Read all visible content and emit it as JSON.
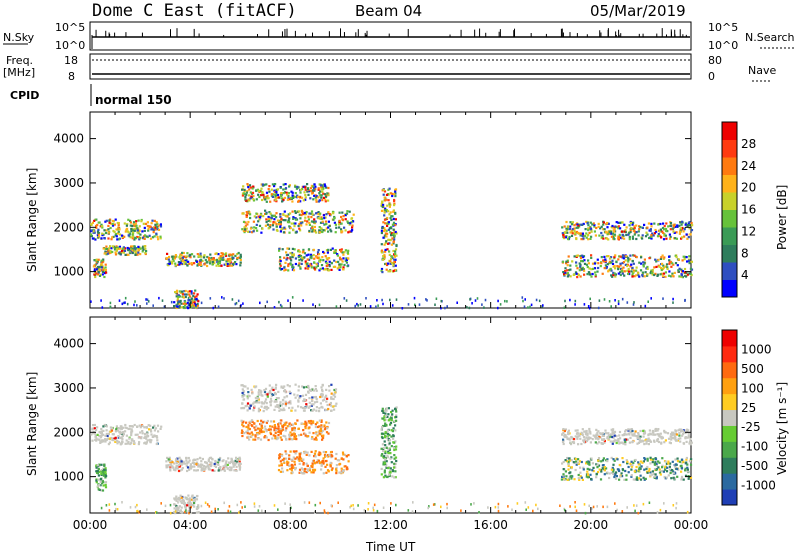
{
  "header": {
    "station": "Dome C East (fitACF)",
    "beam": "Beam 04",
    "date": "05/Mar/2019"
  },
  "top_panels": {
    "nsky_label": "N.Sky",
    "nsky_ticks": [
      "10^5",
      "10^0"
    ],
    "nsearch_label": "N.Search",
    "nsearch_ticks": [
      "10^5",
      "10^0"
    ],
    "freq_label": "Freq.",
    "freq_unit": "[MHz]",
    "freq_ticks": [
      "18",
      "8"
    ],
    "nave_label": "Nave",
    "nave_ticks": [
      "80",
      "0"
    ],
    "cpid_label": "CPID",
    "cpid_value": "normal 150"
  },
  "chart_data": [
    {
      "type": "heatmap",
      "name": "power",
      "ylabel": "Slant Range [km]",
      "y_ticks": [
        "4000",
        "3000",
        "2000",
        "1000"
      ],
      "x_ticks": [
        "00:00",
        "04:00",
        "08:00",
        "12:00",
        "16:00",
        "20:00",
        "00:00"
      ],
      "xlabel": "Time UT",
      "x_range_hours": [
        0,
        24
      ],
      "y_range_km": [
        180,
        4600
      ],
      "colorbar": {
        "label": "Power [dB]",
        "ticks": [
          "28",
          "24",
          "20",
          "16",
          "12",
          "8",
          "4"
        ],
        "colors": [
          "#0000ff",
          "#2f4fc0",
          "#2e7d5c",
          "#3a9b56",
          "#66c23a",
          "#c8d12a",
          "#ffb21a",
          "#ff7a10",
          "#ff3a10",
          "#ee0000"
        ]
      },
      "regions": [
        {
          "t": [
            0.0,
            2.8
          ],
          "r": [
            1750,
            2200
          ],
          "level": "mixed"
        },
        {
          "t": [
            0.1,
            0.6
          ],
          "r": [
            900,
            1300
          ],
          "level": "mixed"
        },
        {
          "t": [
            0.5,
            2.2
          ],
          "r": [
            1400,
            1600
          ],
          "level": "mixed"
        },
        {
          "t": [
            3.0,
            6.0
          ],
          "r": [
            1150,
            1450
          ],
          "level": "mixed"
        },
        {
          "t": [
            6.0,
            9.5
          ],
          "r": [
            2600,
            3000
          ],
          "level": "mixed"
        },
        {
          "t": [
            6.0,
            10.5
          ],
          "r": [
            1900,
            2400
          ],
          "level": "mixed"
        },
        {
          "t": [
            7.5,
            10.3
          ],
          "r": [
            1050,
            1550
          ],
          "level": "mixed"
        },
        {
          "t": [
            11.6,
            12.2
          ],
          "r": [
            1000,
            2900
          ],
          "level": "mixed"
        },
        {
          "t": [
            18.8,
            24.0
          ],
          "r": [
            1750,
            2150
          ],
          "level": "mixed"
        },
        {
          "t": [
            18.8,
            24.0
          ],
          "r": [
            900,
            1400
          ],
          "level": "mixed"
        },
        {
          "t": [
            3.3,
            4.3
          ],
          "r": [
            200,
            600
          ],
          "level": "mixed"
        }
      ]
    },
    {
      "type": "heatmap",
      "name": "velocity",
      "ylabel": "Slant Range [km]",
      "y_ticks": [
        "4000",
        "3000",
        "2000",
        "1000"
      ],
      "x_ticks": [
        "00:00",
        "04:00",
        "08:00",
        "12:00",
        "16:00",
        "20:00",
        "00:00"
      ],
      "xlabel": "Time UT",
      "x_range_hours": [
        0,
        24
      ],
      "y_range_km": [
        180,
        4600
      ],
      "colorbar": {
        "label": "Velocity [m s⁻¹]",
        "ticks": [
          "1000",
          "500",
          "100",
          "25",
          "-25",
          "-100",
          "-500",
          "-1000"
        ],
        "colors": [
          "#1f3fb5",
          "#2b6aa0",
          "#2e7d5c",
          "#4aa84a",
          "#66cc33",
          "#c8c8c0",
          "#ffcc22",
          "#ffa010",
          "#ff6a10",
          "#ff2a10",
          "#ee0000"
        ]
      },
      "regions": [
        {
          "t": [
            0.0,
            2.8
          ],
          "r": [
            1750,
            2200
          ],
          "level": "~0 (grey)"
        },
        {
          "t": [
            0.2,
            0.6
          ],
          "r": [
            700,
            1300
          ],
          "level": "positive (green)"
        },
        {
          "t": [
            3.0,
            6.0
          ],
          "r": [
            1150,
            1450
          ],
          "level": "~0 (grey)"
        },
        {
          "t": [
            6.0,
            9.8
          ],
          "r": [
            2500,
            3100
          ],
          "level": "~0 (grey)"
        },
        {
          "t": [
            6.0,
            9.5
          ],
          "r": [
            1850,
            2300
          ],
          "level": "-100 to -500 (orange)"
        },
        {
          "t": [
            7.5,
            10.3
          ],
          "r": [
            1100,
            1600
          ],
          "level": "-100 to -500 (orange)"
        },
        {
          "t": [
            11.6,
            12.2
          ],
          "r": [
            1000,
            2600
          ],
          "level": "positive (green)"
        },
        {
          "t": [
            18.8,
            24.0
          ],
          "r": [
            1750,
            2100
          ],
          "level": "~0 (grey)"
        },
        {
          "t": [
            18.8,
            24.0
          ],
          "r": [
            950,
            1450
          ],
          "level": "100 to 500 (teal)"
        },
        {
          "t": [
            3.3,
            4.3
          ],
          "r": [
            200,
            600
          ],
          "level": "~0 (grey)"
        }
      ]
    }
  ]
}
